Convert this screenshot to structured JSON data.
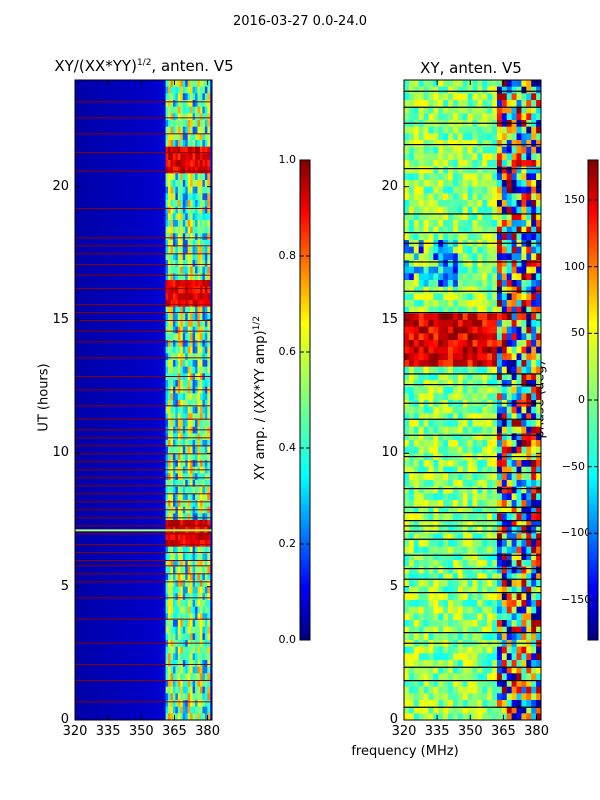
{
  "suptitle": "2016-03-27 0.0-24.0",
  "colors": {
    "jet": [
      "#00007f",
      "#0000ff",
      "#007fff",
      "#00ffff",
      "#7fff7f",
      "#ffff00",
      "#ff7f00",
      "#ff0000",
      "#7f0000"
    ],
    "flag_line_amp": "#8b0000",
    "flag_line_phase": "#000000"
  },
  "chart_data": [
    {
      "type": "heatmap",
      "title": "XY/(XX*YY)^1/2, anten. V5",
      "title_main": "XY/(XX*YY)",
      "title_sup": "1/2",
      "title_tail": ", anten. V5",
      "xlabel": "",
      "ylabel": "UT (hours)",
      "xlim": [
        320,
        382
      ],
      "ylim": [
        0,
        24
      ],
      "x_ticks": [
        320,
        335,
        350,
        365,
        380
      ],
      "x_tick_labels": [
        "320",
        "335",
        "350",
        "365",
        "380"
      ],
      "y_ticks": [
        0,
        5,
        10,
        15,
        20
      ],
      "y_tick_labels": [
        "0",
        "5",
        "10",
        "15",
        "20"
      ],
      "colorbar": {
        "label": "XY amp. / (XX*YY amp)^1/2",
        "label_main": "XY amp. / (XX*YY amp)",
        "label_sup": "1/2",
        "range": [
          0.0,
          1.0
        ],
        "ticks": [
          0.0,
          0.2,
          0.4,
          0.6,
          0.8,
          1.0
        ],
        "tick_labels": [
          "0.0",
          "0.2",
          "0.4",
          "0.6",
          "0.8",
          "1.0"
        ]
      },
      "bright_band_x_range": [
        361,
        381
      ],
      "flagged_hours": [
        0.7,
        1.5,
        2.1,
        2.9,
        3.8,
        4.6,
        5.2,
        5.5,
        5.8,
        6.0,
        6.3,
        6.6,
        7.0,
        7.3,
        7.6,
        7.9,
        8.2,
        8.5,
        8.8,
        9.1,
        9.4,
        9.7,
        10.0,
        10.3,
        10.6,
        10.9,
        11.3,
        11.8,
        12.4,
        12.9,
        13.6,
        14.2,
        14.6,
        15.0,
        15.3,
        15.6,
        16.2,
        16.7,
        17.1,
        17.5,
        17.8,
        18.1,
        19.2,
        20.6,
        21.3,
        22.0,
        22.6,
        23.2
      ]
    },
    {
      "type": "heatmap",
      "title": "XY, anten. V5",
      "xlabel": "frequency (MHz)",
      "ylabel": "",
      "xlim": [
        320,
        382
      ],
      "ylim": [
        0,
        24
      ],
      "x_ticks": [
        320,
        335,
        350,
        365,
        380
      ],
      "x_tick_labels": [
        "320",
        "335",
        "350",
        "365",
        "380"
      ],
      "y_ticks": [
        0,
        5,
        10,
        15,
        20
      ],
      "y_tick_labels": [
        "0",
        "5",
        "10",
        "15",
        "20"
      ],
      "colorbar": {
        "label": "phase (deg)",
        "range": [
          -180,
          180
        ],
        "ticks": [
          -150,
          -100,
          -50,
          0,
          50,
          100,
          150
        ],
        "tick_labels": [
          "−150",
          "−100",
          "−50",
          "0",
          "50",
          "100",
          "150"
        ]
      },
      "hot_region": {
        "x_range": [
          320,
          362
        ],
        "y_range": [
          13.2,
          15.2
        ]
      },
      "flagged_hours": [
        0.5,
        1.5,
        2.0,
        2.9,
        3.3,
        4.8,
        5.3,
        5.7,
        6.2,
        6.8,
        7.1,
        7.3,
        7.5,
        7.8,
        8.0,
        8.7,
        9.3,
        9.9,
        10.7,
        11.3,
        11.9,
        12.6,
        13.0,
        15.3,
        16.1,
        17.2,
        17.9,
        18.3,
        19.0,
        20.7,
        21.6,
        22.4,
        23.0,
        23.6
      ]
    }
  ]
}
